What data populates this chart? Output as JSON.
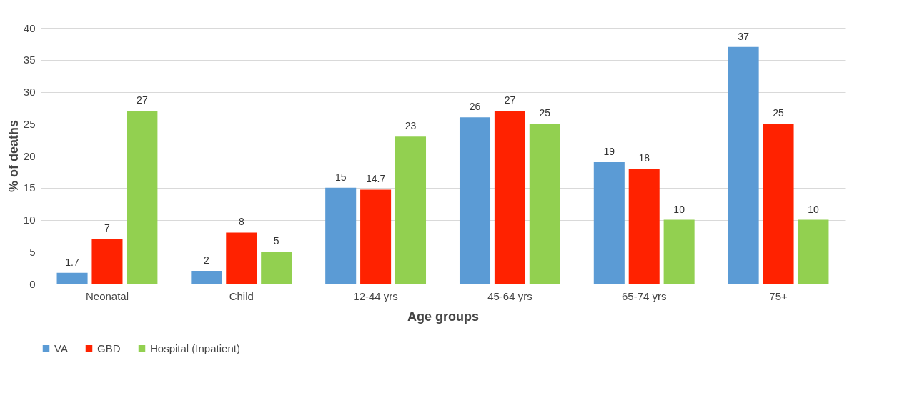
{
  "chart_data": {
    "type": "bar",
    "xlabel": "Age groups",
    "ylabel": "% of deaths",
    "categories": [
      "Neonatal",
      "Child",
      "12-44 yrs",
      "45-64 yrs",
      "65-74 yrs",
      "75+"
    ],
    "series": [
      {
        "name": "VA",
        "color": "#5b9bd5",
        "values": [
          1.7,
          2,
          15,
          26,
          19,
          37
        ]
      },
      {
        "name": "GBD",
        "color": "#ff2200",
        "values": [
          7,
          8,
          14.7,
          27,
          18,
          25
        ]
      },
      {
        "name": "Hospital (Inpatient)",
        "color": "#92d050",
        "values": [
          27,
          5,
          23,
          25,
          10,
          10
        ]
      }
    ],
    "ylim": [
      0,
      40
    ],
    "yticks": [
      0,
      5,
      10,
      15,
      20,
      25,
      30,
      35,
      40
    ],
    "grid": "y",
    "legend": "bottom",
    "data_labels": true
  }
}
